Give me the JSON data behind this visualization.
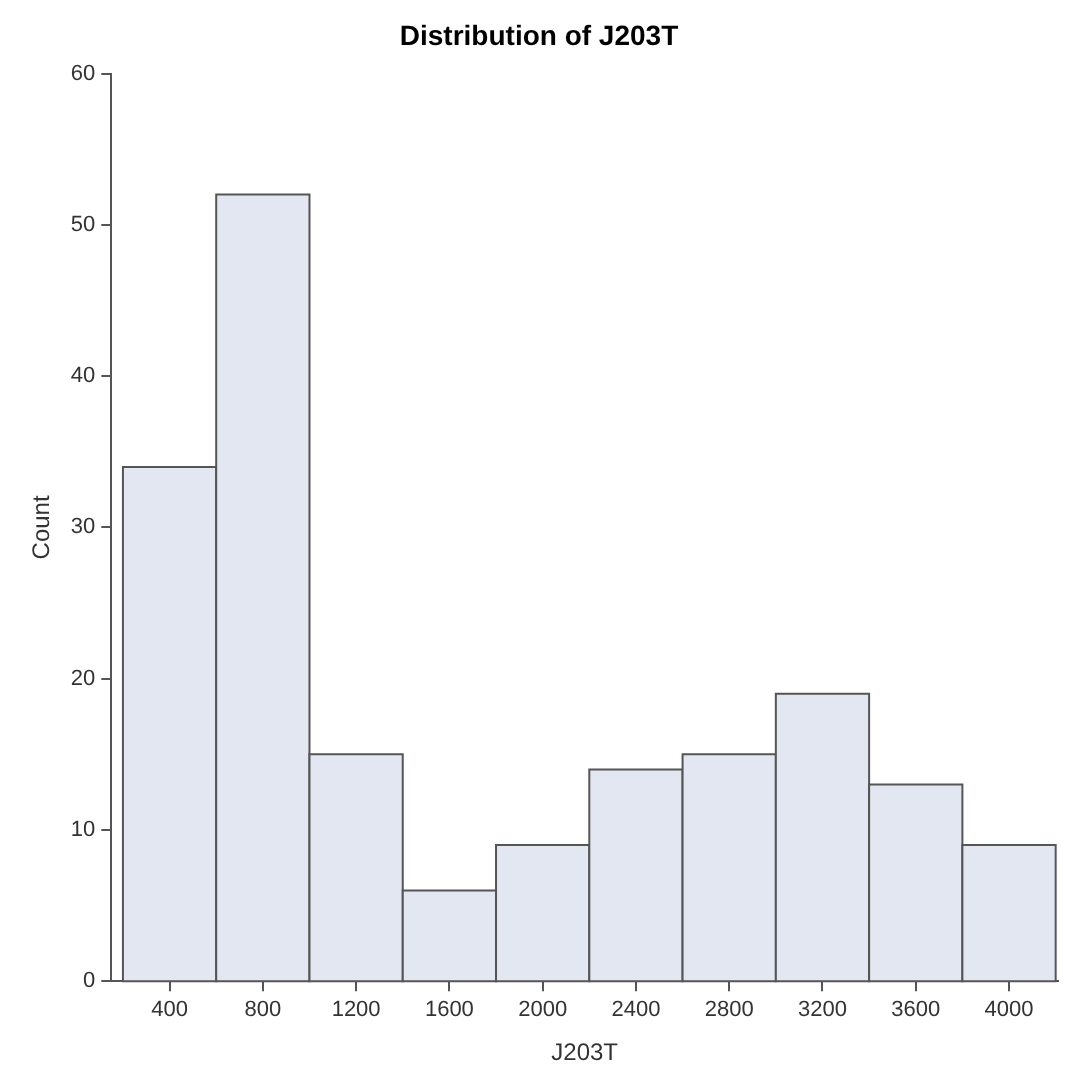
{
  "chart_data": {
    "type": "histogram",
    "title": "Distribution of J203T",
    "xlabel": "J203T",
    "ylabel": "Count",
    "bins": [
      200,
      600,
      1000,
      1400,
      1800,
      2200,
      2600,
      3000,
      3400,
      3800,
      4200
    ],
    "values": [
      34,
      52,
      15,
      6,
      9,
      14,
      15,
      19,
      13,
      9
    ],
    "color": "#e3e7f1",
    "xlim": [
      150,
      4210
    ],
    "xticks": [
      400,
      800,
      1200,
      1600,
      2000,
      2400,
      2800,
      3200,
      3600,
      4000
    ],
    "ylim": [
      0,
      60
    ],
    "yticks": [
      0,
      10,
      20,
      30,
      40,
      50,
      60
    ],
    "grid": false,
    "legend": false
  }
}
